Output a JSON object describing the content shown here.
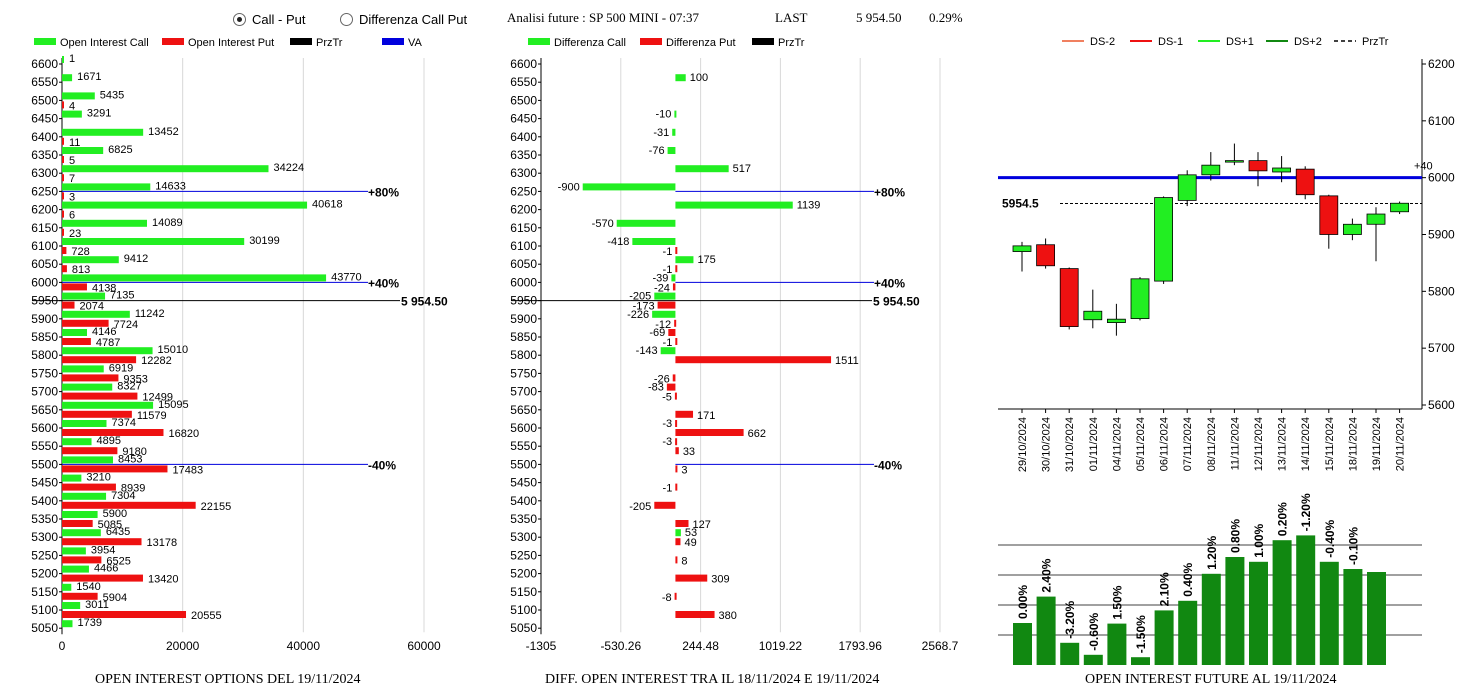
{
  "header": {
    "radio_call_put": "Call - Put",
    "radio_diff": "Differenza Call Put",
    "analysis": "Analisi future : SP 500 MINI - 07:37",
    "last_label": "LAST",
    "last_value": "5 954.50",
    "last_change": "0.29%"
  },
  "colors": {
    "green": "#22ee22",
    "red": "#ee1111",
    "black": "#000000",
    "blue": "#0000dd",
    "dark_green": "#118811"
  },
  "footers": {
    "left": "OPEN INTEREST OPTIONS DEL 19/11/2024",
    "middle": "DIFF. OPEN INTEREST TRA IL 18/11/2024 E 19/11/2024",
    "right": "OPEN INTEREST FUTURE AL 19/11/2024"
  },
  "chart_data": [
    {
      "type": "bar",
      "orientation": "horizontal",
      "legend": [
        "Open Interest Call",
        "Open Interest Put",
        "PrzTr",
        "VA"
      ],
      "categories": [
        "6600",
        "6550",
        "6500",
        "6450",
        "6400",
        "6350",
        "6300",
        "6250",
        "6200",
        "6150",
        "6100",
        "6050",
        "6000",
        "5950",
        "5900",
        "5850",
        "5800",
        "5750",
        "5700",
        "5650",
        "5600",
        "5550",
        "5500",
        "5450",
        "5400",
        "5350",
        "5300",
        "5250",
        "5200",
        "5150",
        "5100",
        "5050"
      ],
      "series": [
        {
          "name": "Open Interest Call",
          "values": [
            1,
            1671,
            5435,
            3291,
            13452,
            6825,
            34224,
            14633,
            40618,
            14089,
            30199,
            9412,
            43770,
            7135,
            11242,
            4146,
            15010,
            6919,
            8327,
            15095,
            7374,
            4895,
            8453,
            3210,
            7304,
            5900,
            6435,
            3954,
            4466,
            1540,
            3011,
            1739
          ]
        },
        {
          "name": "Open Interest Put",
          "values": [
            null,
            null,
            4,
            null,
            11,
            5,
            7,
            3,
            6,
            23,
            728,
            813,
            4138,
            2074,
            7724,
            4787,
            12282,
            9353,
            12499,
            11579,
            16820,
            9180,
            17483,
            8939,
            22155,
            5085,
            13178,
            6525,
            13420,
            5904,
            20555,
            null
          ]
        }
      ],
      "xticks": [
        "0",
        "20000",
        "40000",
        "60000"
      ],
      "xlim": [
        0,
        60000
      ],
      "annotations": [
        {
          "level": "6250",
          "text": "+80%"
        },
        {
          "level": "6000",
          "text": "+40%"
        },
        {
          "level": "5500",
          "text": "-40%"
        }
      ],
      "price_line": {
        "level": "5950",
        "text": "5 954.50"
      }
    },
    {
      "type": "bar",
      "orientation": "horizontal",
      "legend": [
        "Differenza Call",
        "Differenza Put",
        "PrzTr"
      ],
      "categories": [
        "6600",
        "6550",
        "6500",
        "6450",
        "6400",
        "6350",
        "6300",
        "6250",
        "6200",
        "6150",
        "6100",
        "6050",
        "6000",
        "5950",
        "5900",
        "5850",
        "5800",
        "5750",
        "5700",
        "5650",
        "5600",
        "5550",
        "5500",
        "5450",
        "5400",
        "5350",
        "5300",
        "5250",
        "5200",
        "5150",
        "5100",
        "5050"
      ],
      "series": [
        {
          "name": "Differenza Call",
          "values": [
            null,
            100,
            null,
            -10,
            -31,
            -76,
            517,
            -900,
            1139,
            -570,
            -418,
            175,
            -39,
            -205,
            -226,
            null,
            -143,
            null,
            null,
            null,
            null,
            null,
            null,
            null,
            null,
            null,
            53,
            null,
            null,
            null,
            null,
            null
          ]
        },
        {
          "name": "Differenza Put",
          "values": [
            null,
            null,
            null,
            null,
            null,
            null,
            null,
            null,
            null,
            null,
            -1,
            -1,
            -24,
            -173,
            -12,
            -1,
            1511,
            -26,
            -5,
            171,
            662,
            33,
            3,
            -1,
            -205,
            127,
            49,
            8,
            309,
            -8,
            380,
            null
          ]
        },
        {
          "name": "Differenza Put (extra)",
          "values": [
            null,
            null,
            null,
            null,
            null,
            null,
            null,
            null,
            null,
            null,
            null,
            null,
            null,
            null,
            null,
            -69,
            null,
            null,
            -83,
            null,
            -3,
            -3,
            null,
            null,
            null,
            null,
            null,
            null,
            null,
            null,
            null,
            null
          ]
        }
      ],
      "xticks": [
        "-1305",
        "-530.26",
        "244.48",
        "1019.22",
        "1793.96",
        "2568.7"
      ],
      "xlim": [
        -1305,
        2568.7
      ],
      "annotations": [
        {
          "level": "6250",
          "text": "+80%"
        },
        {
          "level": "6000",
          "text": "+40%"
        },
        {
          "level": "5500",
          "text": "-40%"
        }
      ],
      "price_line": {
        "level": "5950",
        "text": "5 954.50"
      }
    },
    {
      "type": "candlestick",
      "legend": [
        "DS-2",
        "DS-1",
        "DS+1",
        "DS+2",
        "PrzTr"
      ],
      "legend_colors": [
        "#f08060",
        "#ee1111",
        "#22ee22",
        "#118811",
        "#000000"
      ],
      "dates": [
        "29/10/2024",
        "30/10/2024",
        "31/10/2024",
        "01/11/2024",
        "04/11/2024",
        "05/11/2024",
        "06/11/2024",
        "07/11/2024",
        "08/11/2024",
        "11/11/2024",
        "12/11/2024",
        "13/11/2024",
        "14/11/2024",
        "15/11/2024",
        "18/11/2024",
        "19/11/2024",
        "20/11/2024"
      ],
      "candles": [
        {
          "o": 5870,
          "c": 5880,
          "h": 5887,
          "l": 5835
        },
        {
          "o": 5882,
          "c": 5845,
          "h": 5893,
          "l": 5840
        },
        {
          "o": 5840,
          "c": 5738,
          "h": 5842,
          "l": 5733
        },
        {
          "o": 5750,
          "c": 5765,
          "h": 5803,
          "l": 5735
        },
        {
          "o": 5745,
          "c": 5751,
          "h": 5778,
          "l": 5722
        },
        {
          "o": 5752,
          "c": 5822,
          "h": 5825,
          "l": 5749
        },
        {
          "o": 5818,
          "c": 5965,
          "h": 5967,
          "l": 5813
        },
        {
          "o": 5960,
          "c": 6005,
          "h": 6013,
          "l": 5950
        },
        {
          "o": 6005,
          "c": 6022,
          "h": 6045,
          "l": 5995
        },
        {
          "o": 6030,
          "c": 6030,
          "h": 6060,
          "l": 6022
        },
        {
          "o": 6030,
          "c": 6012,
          "h": 6045,
          "l": 5985
        },
        {
          "o": 6010,
          "c": 6017,
          "h": 6038,
          "l": 5992
        },
        {
          "o": 6015,
          "c": 5970,
          "h": 6020,
          "l": 5962
        },
        {
          "o": 5968,
          "c": 5900,
          "h": 5970,
          "l": 5875
        },
        {
          "o": 5900,
          "c": 5918,
          "h": 5928,
          "l": 5890
        },
        {
          "o": 5918,
          "c": 5936,
          "h": 5948,
          "l": 5853
        },
        {
          "o": 5940,
          "c": 5955,
          "h": 5958,
          "l": 5936
        }
      ],
      "ylim": [
        5600,
        6200
      ],
      "yticks": [
        "5600",
        "5700",
        "5800",
        "5900",
        "6000",
        "6100",
        "6200"
      ],
      "hline": {
        "value": 6000,
        "label": "+40"
      },
      "price_line": {
        "value": 5954.5,
        "label": "5954.5"
      }
    },
    {
      "type": "bar",
      "categories": [
        "29/10/2024",
        "30/10/2024",
        "31/10/2024",
        "01/11/2024",
        "04/11/2024",
        "05/11/2024",
        "06/11/2024",
        "07/11/2024",
        "08/11/2024",
        "11/11/2024",
        "12/11/2024",
        "13/11/2024",
        "14/11/2024",
        "15/11/2024",
        "18/11/2024",
        "19/11/2024"
      ],
      "values": [
        0.35,
        0.57,
        0.185,
        0.085,
        0.345,
        0.065,
        0.455,
        0.535,
        0.76,
        0.9,
        0.86,
        1.04,
        1.08,
        0.86,
        0.8,
        0.775
      ],
      "labels": [
        "0.00%",
        "2.40%",
        "-3.20%",
        "-0.60%",
        "1.50%",
        "-1.50%",
        "2.10%",
        "0.40%",
        "1.20%",
        "0.80%",
        "1.00%",
        "0.20%",
        "-1.20%",
        "-0.40%",
        "-0.10%"
      ],
      "label_bars": [
        0,
        1,
        2,
        3,
        4,
        5,
        6,
        7,
        8,
        9,
        10,
        11,
        12,
        13,
        14
      ]
    }
  ]
}
